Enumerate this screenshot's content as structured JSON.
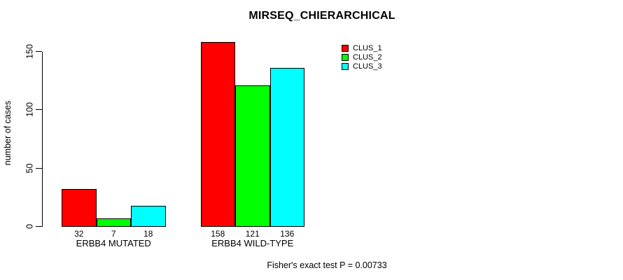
{
  "chart_data": {
    "type": "bar",
    "title": "MIRSEQ_CHIERARCHICAL",
    "ylabel": "number of cases",
    "xlabel": "",
    "categories": [
      "ERBB4 MUTATED",
      "ERBB4 WILD-TYPE"
    ],
    "series": [
      {
        "name": "CLUS_1",
        "color": "#ff0000",
        "values": [
          32,
          158
        ]
      },
      {
        "name": "CLUS_2",
        "color": "#00ff00",
        "values": [
          7,
          121
        ]
      },
      {
        "name": "CLUS_3",
        "color": "#00ffff",
        "values": [
          18,
          136
        ]
      }
    ],
    "bar_value_labels": [
      [
        "32",
        "7",
        "18"
      ],
      [
        "158",
        "121",
        "136"
      ]
    ],
    "yticks": [
      0,
      50,
      100,
      150
    ],
    "ylim": [
      0,
      158
    ],
    "grid": false,
    "legend_position": "top-right",
    "legend_entries": [
      "CLUS_1",
      "CLUS_2",
      "CLUS_3"
    ],
    "annotation": "Fisher's exact test P = 0.00733"
  },
  "colors": {
    "background": "#ffffff",
    "axis": "#000000",
    "text": "#000000",
    "clus_1": "#ff0000",
    "clus_2": "#00ff00",
    "clus_3": "#00ffff"
  }
}
